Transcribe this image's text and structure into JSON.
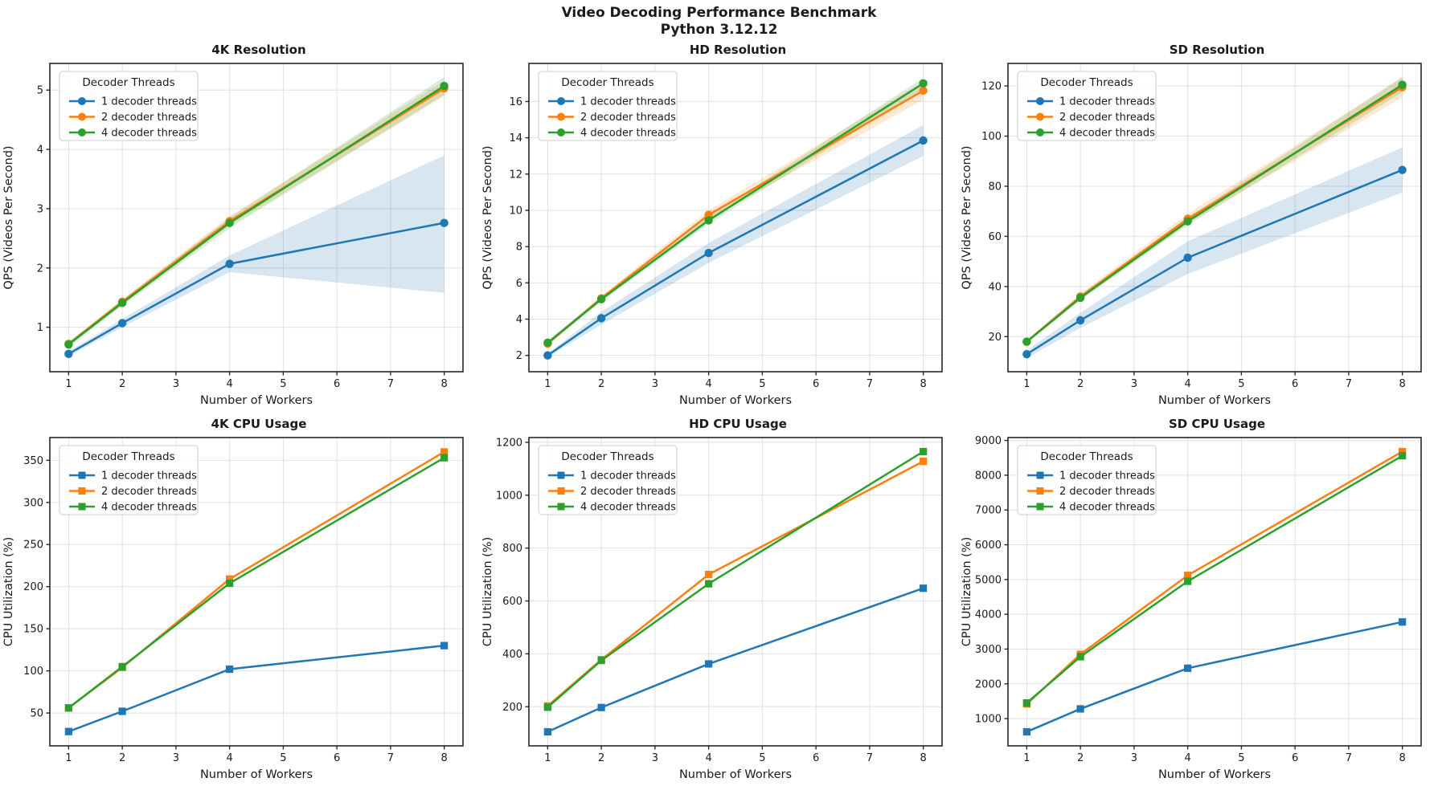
{
  "header": {
    "title": "Video Decoding Performance Benchmark",
    "subtitle": "Python 3.12.12"
  },
  "legend": {
    "title": "Decoder Threads"
  },
  "colors": {
    "series": [
      "#1f77b4",
      "#ff7f0e",
      "#2ca02c"
    ],
    "grid": "#e0e0e0",
    "spine": "#262626",
    "text": "#1a1a1a",
    "legend_border": "#cccccc"
  },
  "chart_data": [
    {
      "type": "line",
      "name": "4k-resolution",
      "title": "4K Resolution",
      "xlabel": "Number of Workers",
      "ylabel": "QPS (Videos Per Second)",
      "marker": "circle",
      "x": [
        1,
        2,
        4,
        8
      ],
      "xticks": [
        1,
        2,
        3,
        4,
        5,
        6,
        7,
        8
      ],
      "xlim": [
        0.65,
        8.35
      ],
      "yticks": [
        1,
        2,
        3,
        4,
        5
      ],
      "ylim": [
        0.25,
        5.45
      ],
      "grid": true,
      "legend_position": "upper left",
      "series": [
        {
          "name": "1 decoder threads",
          "values": [
            0.55,
            1.07,
            2.07,
            2.76
          ],
          "band_lo": [
            0.51,
            1.0,
            1.93,
            1.58
          ],
          "band_hi": [
            0.59,
            1.14,
            2.21,
            3.9
          ]
        },
        {
          "name": "2 decoder threads",
          "values": [
            0.72,
            1.43,
            2.79,
            5.03
          ],
          "band_lo": [
            0.69,
            1.39,
            2.71,
            4.9
          ],
          "band_hi": [
            0.75,
            1.47,
            2.87,
            5.16
          ]
        },
        {
          "name": "4 decoder threads",
          "values": [
            0.71,
            1.41,
            2.76,
            5.07
          ],
          "band_lo": [
            0.67,
            1.36,
            2.67,
            4.92
          ],
          "band_hi": [
            0.75,
            1.46,
            2.85,
            5.22
          ]
        }
      ]
    },
    {
      "type": "line",
      "name": "hd-resolution",
      "title": "HD Resolution",
      "xlabel": "Number of Workers",
      "ylabel": "QPS (Videos Per Second)",
      "marker": "circle",
      "x": [
        1,
        2,
        4,
        8
      ],
      "xticks": [
        1,
        2,
        3,
        4,
        5,
        6,
        7,
        8
      ],
      "xlim": [
        0.65,
        8.35
      ],
      "yticks": [
        2,
        4,
        6,
        8,
        10,
        12,
        14,
        16
      ],
      "ylim": [
        1.1,
        18.1
      ],
      "grid": true,
      "legend_position": "upper left",
      "series": [
        {
          "name": "1 decoder threads",
          "values": [
            2.0,
            4.05,
            7.65,
            13.85
          ],
          "band_lo": [
            1.9,
            3.7,
            7.1,
            13.0
          ],
          "band_hi": [
            2.1,
            4.4,
            8.2,
            14.7
          ]
        },
        {
          "name": "2 decoder threads",
          "values": [
            2.65,
            5.15,
            9.75,
            16.6
          ],
          "band_lo": [
            2.55,
            5.0,
            9.5,
            16.1
          ],
          "band_hi": [
            2.75,
            5.3,
            10.0,
            17.1
          ]
        },
        {
          "name": "4 decoder threads",
          "values": [
            2.7,
            5.1,
            9.45,
            17.0
          ],
          "band_lo": [
            2.6,
            4.98,
            9.25,
            16.7
          ],
          "band_hi": [
            2.8,
            5.22,
            9.65,
            17.3
          ]
        }
      ]
    },
    {
      "type": "line",
      "name": "sd-resolution",
      "title": "SD Resolution",
      "xlabel": "Number of Workers",
      "ylabel": "QPS (Videos Per Second)",
      "marker": "circle",
      "x": [
        1,
        2,
        4,
        8
      ],
      "xticks": [
        1,
        2,
        3,
        4,
        5,
        6,
        7,
        8
      ],
      "xlim": [
        0.65,
        8.35
      ],
      "yticks": [
        20,
        40,
        60,
        80,
        100,
        120
      ],
      "ylim": [
        6,
        129
      ],
      "grid": true,
      "legend_position": "upper left",
      "series": [
        {
          "name": "1 decoder threads",
          "values": [
            13,
            26.5,
            51.5,
            86.5
          ],
          "band_lo": [
            11.5,
            23.5,
            45,
            77.5
          ],
          "band_hi": [
            14.5,
            29.5,
            58,
            95.5
          ]
        },
        {
          "name": "2 decoder threads",
          "values": [
            18,
            36,
            67,
            119.5
          ],
          "band_lo": [
            17.3,
            34.8,
            65,
            115.5
          ],
          "band_hi": [
            18.7,
            37.2,
            69,
            123.5
          ]
        },
        {
          "name": "4 decoder threads",
          "values": [
            18,
            35.5,
            66,
            120.5
          ],
          "band_lo": [
            17.4,
            34.5,
            64.5,
            117.5
          ],
          "band_hi": [
            18.6,
            36.5,
            67.5,
            123.5
          ]
        }
      ]
    },
    {
      "type": "line",
      "name": "4k-cpu-usage",
      "title": "4K CPU Usage",
      "xlabel": "Number of Workers",
      "ylabel": "CPU Utilization (%)",
      "marker": "square",
      "x": [
        1,
        2,
        4,
        8
      ],
      "xticks": [
        1,
        2,
        3,
        4,
        5,
        6,
        7,
        8
      ],
      "xlim": [
        0.65,
        8.35
      ],
      "yticks": [
        50,
        100,
        150,
        200,
        250,
        300,
        350
      ],
      "ylim": [
        11,
        377
      ],
      "grid": true,
      "legend_position": "upper left",
      "series": [
        {
          "name": "1 decoder threads",
          "values": [
            28,
            52,
            102,
            130
          ]
        },
        {
          "name": "2 decoder threads",
          "values": [
            56,
            104,
            209,
            360
          ]
        },
        {
          "name": "4 decoder threads",
          "values": [
            56,
            105,
            204,
            353
          ]
        }
      ]
    },
    {
      "type": "line",
      "name": "hd-cpu-usage",
      "title": "HD CPU Usage",
      "xlabel": "Number of Workers",
      "ylabel": "CPU Utilization (%)",
      "marker": "square",
      "x": [
        1,
        2,
        4,
        8
      ],
      "xticks": [
        1,
        2,
        3,
        4,
        5,
        6,
        7,
        8
      ],
      "xlim": [
        0.65,
        8.35
      ],
      "yticks": [
        200,
        400,
        600,
        800,
        1000,
        1200
      ],
      "ylim": [
        52,
        1218
      ],
      "grid": true,
      "legend_position": "upper left",
      "series": [
        {
          "name": "1 decoder threads",
          "values": [
            105,
            197,
            362,
            648
          ]
        },
        {
          "name": "2 decoder threads",
          "values": [
            203,
            378,
            700,
            1128
          ]
        },
        {
          "name": "4 decoder threads",
          "values": [
            198,
            375,
            665,
            1165
          ]
        }
      ]
    },
    {
      "type": "line",
      "name": "sd-cpu-usage",
      "title": "SD CPU Usage",
      "xlabel": "Number of Workers",
      "ylabel": "CPU Utilization (%)",
      "marker": "square",
      "x": [
        1,
        2,
        4,
        8
      ],
      "xticks": [
        1,
        2,
        3,
        4,
        5,
        6,
        7,
        8
      ],
      "xlim": [
        0.65,
        8.35
      ],
      "yticks": [
        1000,
        2000,
        3000,
        4000,
        5000,
        6000,
        7000,
        8000,
        9000
      ],
      "ylim": [
        217,
        9083
      ],
      "grid": true,
      "legend_position": "upper left",
      "series": [
        {
          "name": "1 decoder threads",
          "values": [
            620,
            1280,
            2450,
            3780
          ]
        },
        {
          "name": "2 decoder threads",
          "values": [
            1420,
            2850,
            5120,
            8680
          ]
        },
        {
          "name": "4 decoder threads",
          "values": [
            1450,
            2780,
            4950,
            8560
          ]
        }
      ]
    }
  ]
}
